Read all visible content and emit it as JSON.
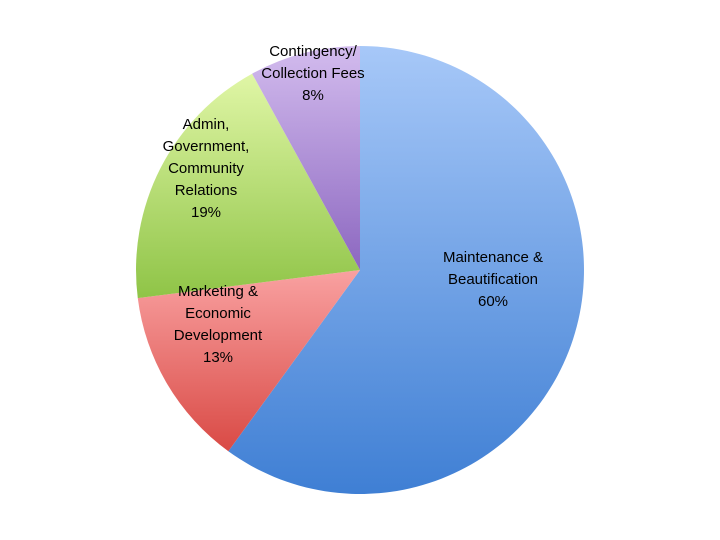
{
  "chart_data": {
    "type": "pie",
    "title": "",
    "slices": [
      {
        "label_lines": [
          "Maintenance &",
          "Beautification"
        ],
        "pct_label": "60%",
        "value": 60,
        "color_light": "#a7c8f8",
        "color_dark": "#3f7fd4"
      },
      {
        "label_lines": [
          "Marketing &",
          "Economic",
          "Development"
        ],
        "pct_label": "13%",
        "value": 13,
        "color_light": "#f9a1a1",
        "color_dark": "#d94a45"
      },
      {
        "label_lines": [
          "Admin,",
          "Government,",
          "Community",
          "Relations"
        ],
        "pct_label": "19%",
        "value": 19,
        "color_light": "#e0f6a6",
        "color_dark": "#8fc447"
      },
      {
        "label_lines": [
          "Contingency/",
          "Collection Fees"
        ],
        "pct_label": "8%",
        "value": 8,
        "color_light": "#d3bcee",
        "color_dark": "#8c67c0"
      }
    ]
  }
}
